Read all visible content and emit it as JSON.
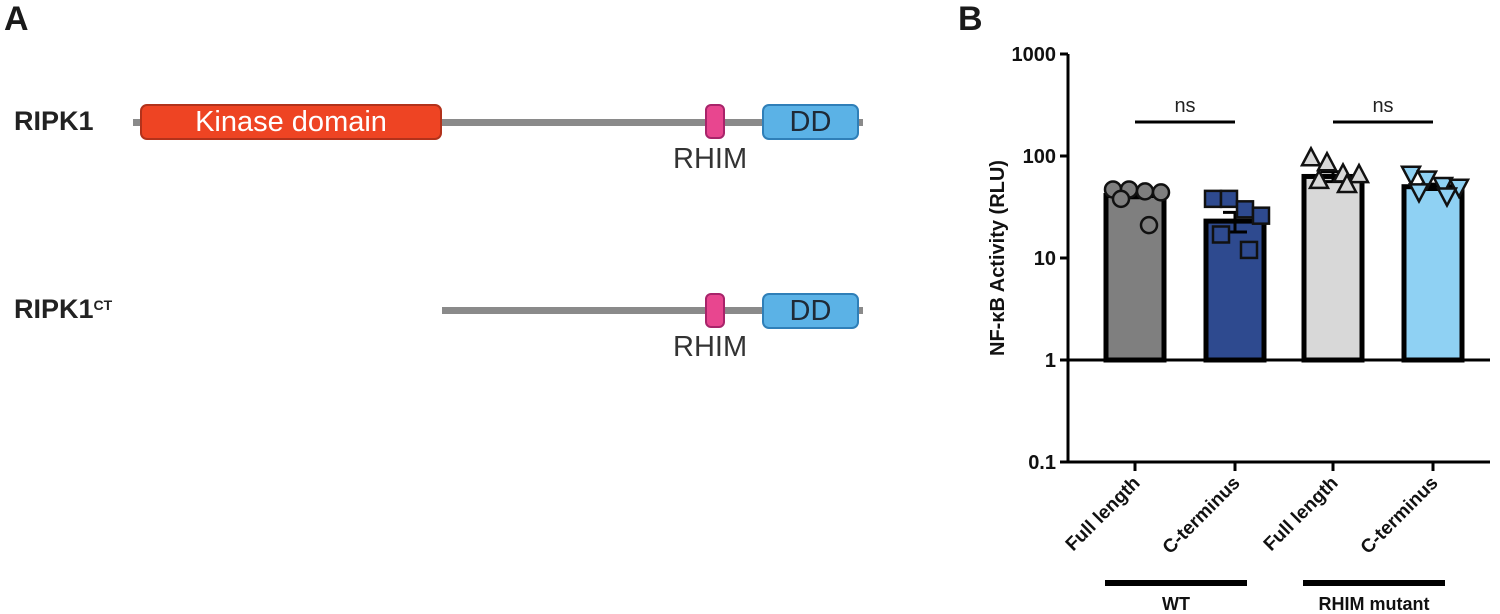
{
  "panel_a": {
    "letter": "A",
    "constructs": [
      {
        "label": "RIPK1",
        "superscript": "",
        "domains": {
          "kinase": "Kinase domain",
          "rhim": "RHIM",
          "dd": "DD"
        }
      },
      {
        "label": "RIPK1",
        "superscript": "CT",
        "domains": {
          "rhim": "RHIM",
          "dd": "DD"
        }
      }
    ],
    "colors": {
      "kinase": "#ee4423",
      "rhim": "#e8468f",
      "dd": "#5bb2e6",
      "backbone": "#8a8a8a"
    }
  },
  "panel_b": {
    "letter": "B"
  },
  "chart_data": {
    "type": "bar",
    "title": "",
    "ylabel": "NF-κB Activity (RLU)",
    "xlabel": "",
    "yscale": "log",
    "ylim": [
      0.1,
      1000
    ],
    "yticks": [
      "0.1",
      "1",
      "10",
      "100",
      "1000"
    ],
    "baseline": 1,
    "categories": [
      "Full length",
      "C-terminus",
      "Full length",
      "C-terminus"
    ],
    "groups": [
      {
        "label": "WT",
        "categories": [
          0,
          1
        ]
      },
      {
        "label": "RHIM mutant",
        "categories": [
          2,
          3
        ]
      }
    ],
    "values": [
      41,
      23,
      63,
      50
    ],
    "sem": [
      2,
      5,
      7,
      3
    ],
    "points": [
      [
        47,
        47,
        45,
        44,
        38,
        21
      ],
      [
        38,
        38,
        30,
        26,
        17,
        12
      ],
      [
        95,
        85,
        66,
        65,
        57,
        52
      ],
      [
        67,
        60,
        52,
        50,
        45,
        41
      ]
    ],
    "markers": [
      "circle",
      "square",
      "triangle-up",
      "triangle-down"
    ],
    "bar_colors": [
      "#7f7f7f",
      "#2e4a8f",
      "#d8d8d8",
      "#8fd1f3"
    ],
    "significance": [
      {
        "between": [
          0,
          1
        ],
        "label": "ns"
      },
      {
        "between": [
          2,
          3
        ],
        "label": "ns"
      }
    ],
    "grid": false,
    "legend": "none"
  }
}
